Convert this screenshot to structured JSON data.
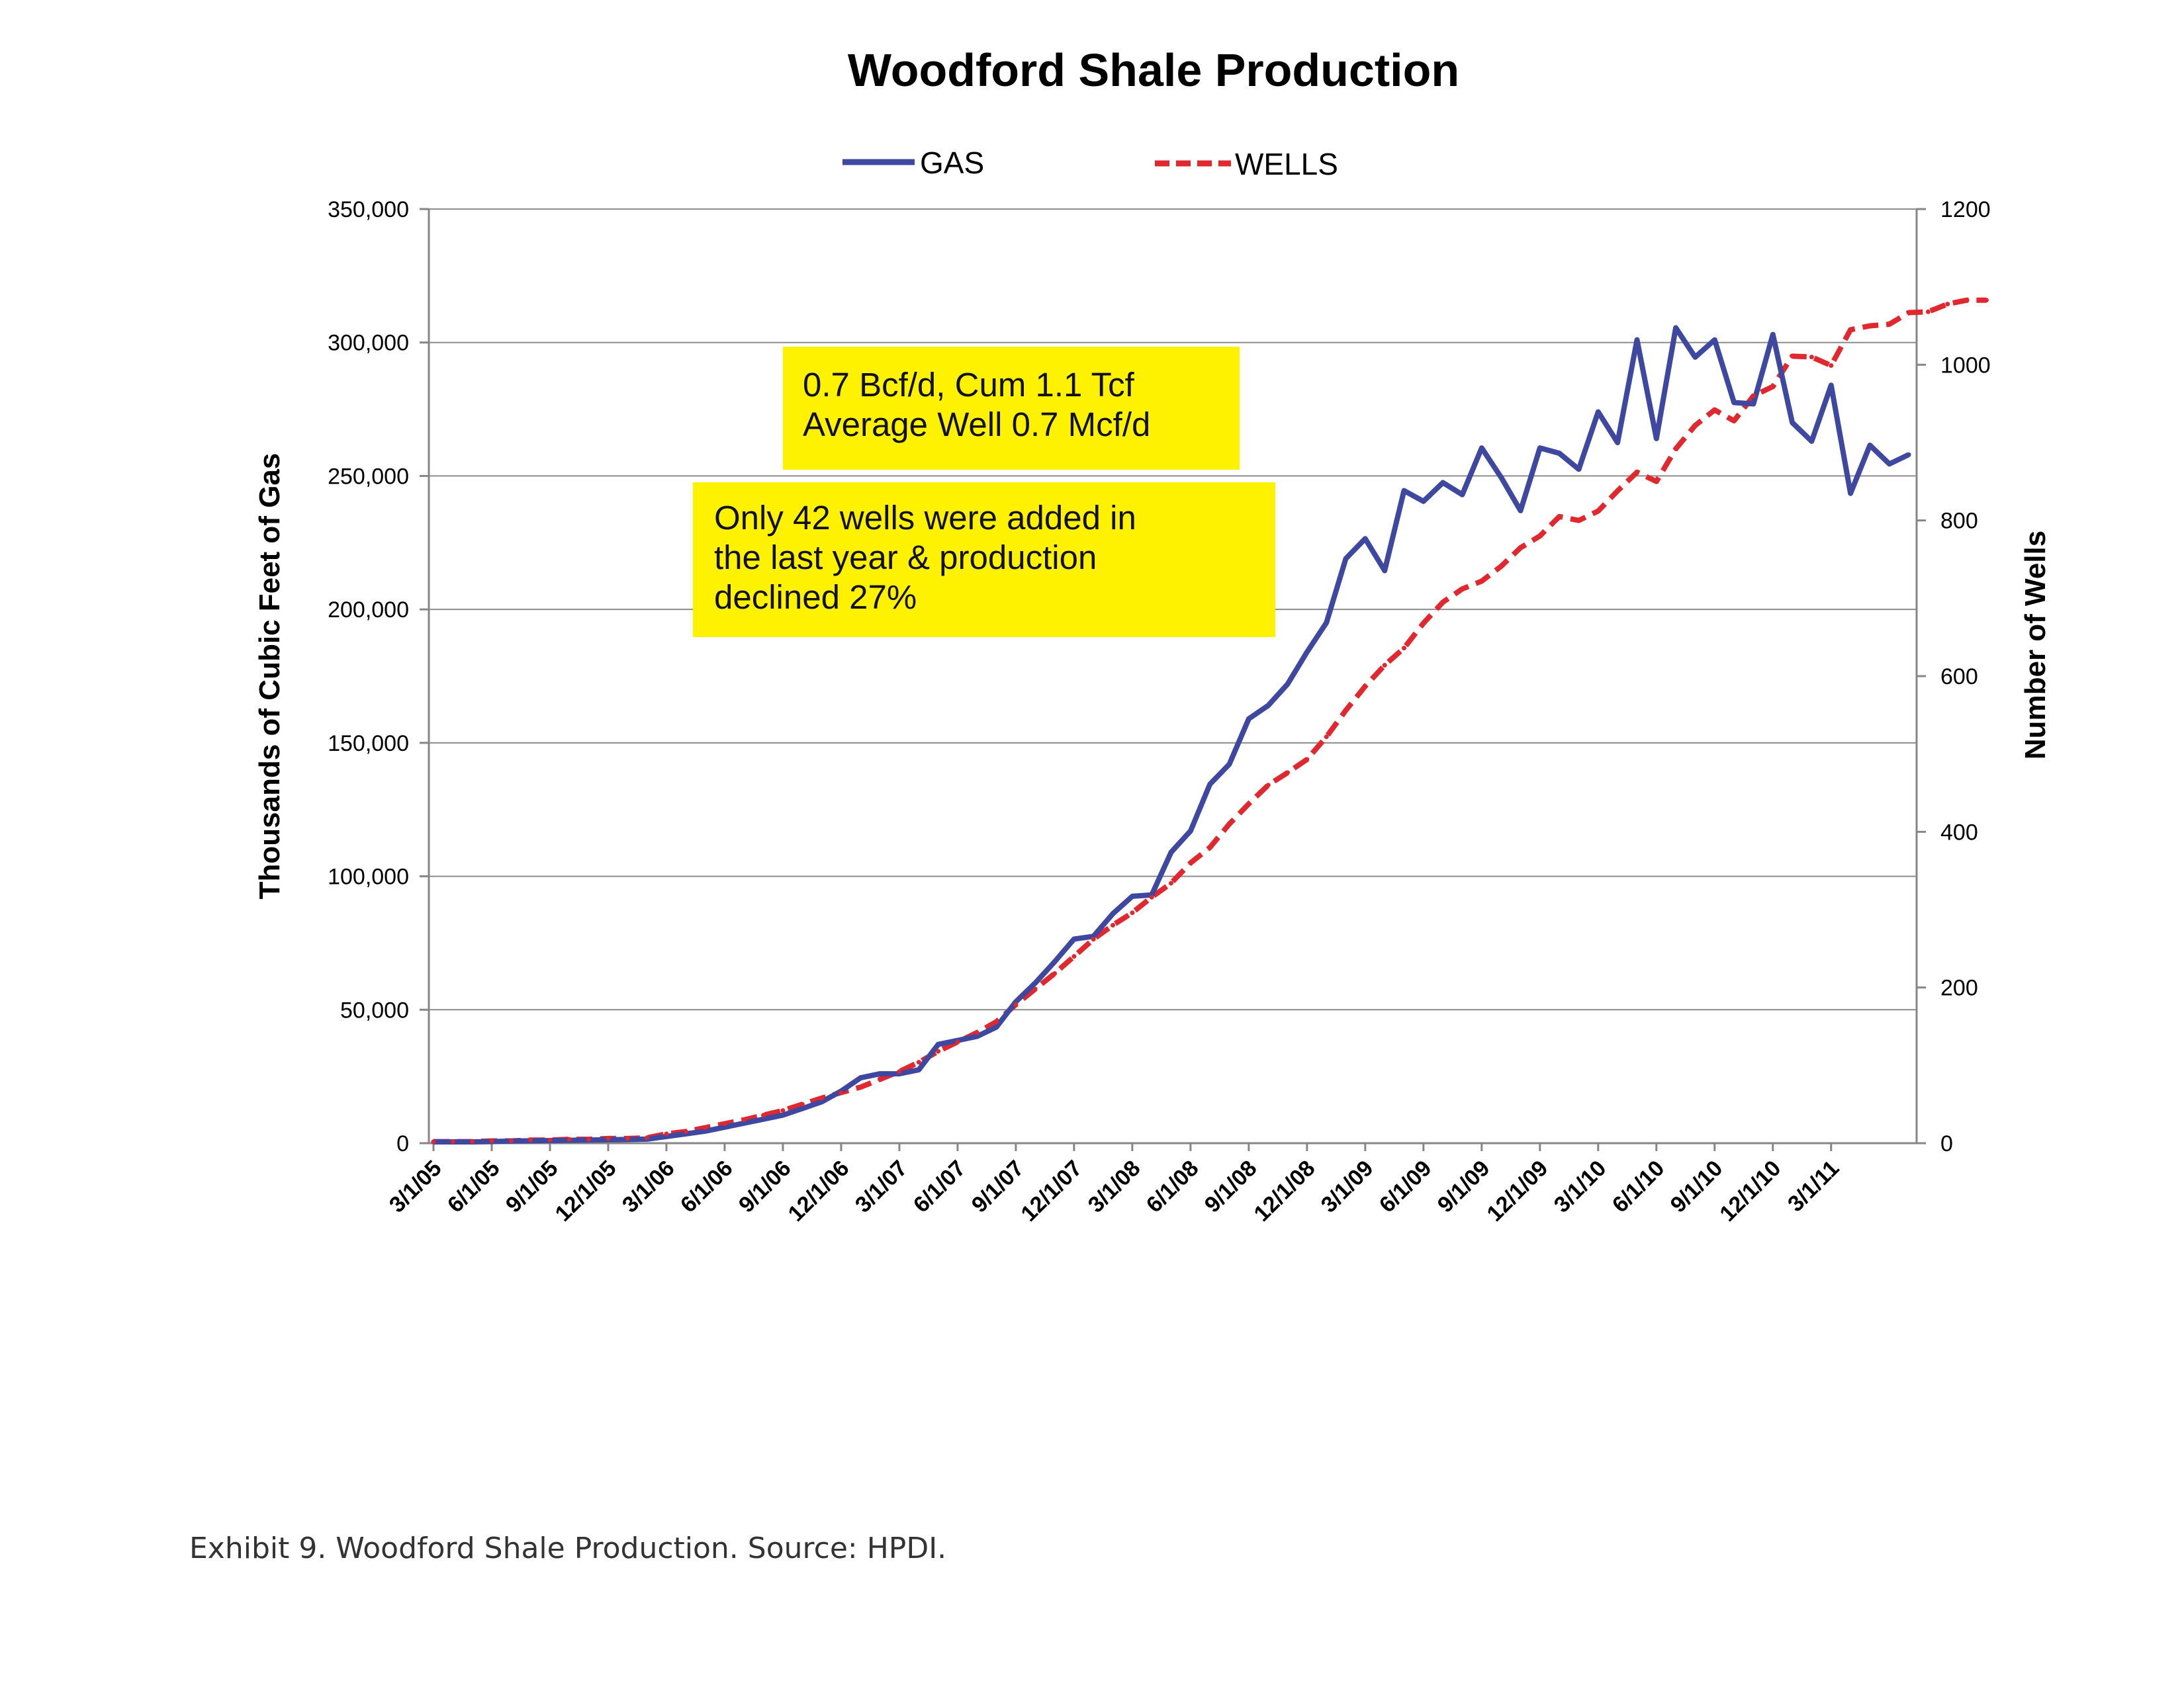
{
  "chart_data": {
    "type": "line",
    "title": "Woodford Shale Production",
    "ylabel": "Thousands of Cubic Feet of Gas",
    "y2label": "Number of Wells",
    "ylim": [
      0,
      350000
    ],
    "y2lim": [
      0,
      1200
    ],
    "y_ticks": [
      "0",
      "50,000",
      "100,000",
      "150,000",
      "200,000",
      "250,000",
      "300,000",
      "350,000"
    ],
    "y_tick_values": [
      0,
      50000,
      100000,
      150000,
      200000,
      250000,
      300000,
      350000
    ],
    "y2_ticks": [
      "0",
      "200",
      "400",
      "600",
      "800",
      "1000",
      "1200"
    ],
    "y2_tick_values": [
      0,
      200,
      400,
      600,
      800,
      1000,
      1200
    ],
    "x_tick_labels": [
      "3/1/05",
      "6/1/05",
      "9/1/05",
      "12/1/05",
      "3/1/06",
      "6/1/06",
      "9/1/06",
      "12/1/06",
      "3/1/07",
      "6/1/07",
      "9/1/07",
      "12/1/07",
      "3/1/08",
      "6/1/08",
      "9/1/08",
      "12/1/08",
      "3/1/09",
      "6/1/09",
      "9/1/09",
      "12/1/09",
      "3/1/10",
      "6/1/10",
      "9/1/10",
      "12/1/10",
      "3/1/11"
    ],
    "x_start": "3/1/05",
    "x_interval": "monthly",
    "grid": true,
    "legend_position": "top-center",
    "series": [
      {
        "name": "GAS",
        "axis": "left",
        "color": "#3f48a0",
        "style": "solid",
        "values": [
          500,
          500,
          500,
          600,
          800,
          900,
          1000,
          1100,
          1200,
          1300,
          1400,
          1500,
          2500,
          3500,
          4500,
          6000,
          7500,
          9000,
          10500,
          13000,
          15500,
          19500,
          24500,
          26000,
          26000,
          27500,
          37000,
          38500,
          40000,
          43500,
          53000,
          60000,
          68000,
          76500,
          77500,
          86000,
          92500,
          93000,
          109000,
          117000,
          134500,
          142000,
          159000,
          164000,
          172000,
          184000,
          195000,
          219000,
          226500,
          214500,
          244500,
          240500,
          247500,
          243000,
          260500,
          249500,
          237000,
          260500,
          258500,
          252500,
          274000,
          262500,
          301000,
          264000,
          305500,
          294500,
          301000,
          277500,
          277000,
          303000,
          270000,
          263000,
          284000,
          243500,
          261500,
          254500,
          258000
        ]
      },
      {
        "name": "WELLS",
        "axis": "right",
        "color": "#e0282e",
        "style": "dashed",
        "values": [
          2,
          2,
          2,
          3,
          3,
          4,
          4,
          5,
          5,
          6,
          6,
          7,
          12,
          15,
          20,
          25,
          30,
          36,
          42,
          50,
          58,
          65,
          72,
          82,
          92,
          104,
          118,
          130,
          142,
          156,
          178,
          198,
          218,
          240,
          262,
          280,
          296,
          316,
          334,
          360,
          380,
          410,
          436,
          460,
          476,
          493,
          522,
          556,
          587,
          614,
          636,
          668,
          695,
          712,
          722,
          741,
          765,
          780,
          805,
          800,
          812,
          838,
          862,
          850,
          892,
          922,
          942,
          928,
          960,
          972,
          1011,
          1010,
          999,
          1045,
          1050,
          1052,
          1067,
          1068,
          1078,
          1083,
          1083
        ]
      }
    ]
  },
  "legend": {
    "gas_label": "GAS",
    "wells_label": "WELLS"
  },
  "annotations": {
    "box1_line1": "0.7 Bcf/d, Cum 1.1 Tcf",
    "box1_line2": "Average Well 0.7 Mcf/d",
    "box2_line1": "Only 42 wells were added in",
    "box2_line2": "the last year & production",
    "box2_line3": "declined 27%"
  },
  "caption": "Exhibit 9.  Woodford Shale Production.  Source:  HPDI."
}
